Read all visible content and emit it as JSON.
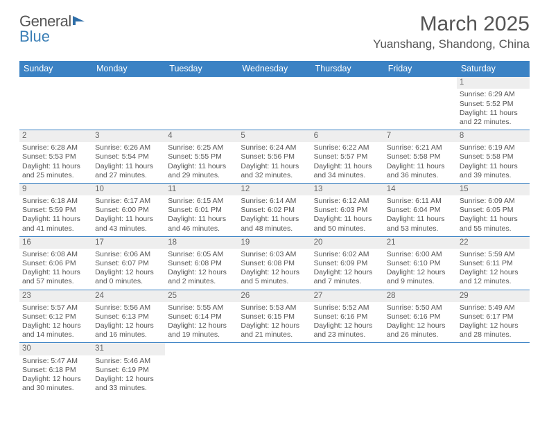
{
  "logo": {
    "text1": "General",
    "text2": "Blue"
  },
  "title": "March 2025",
  "location": "Yuanshang, Shandong, China",
  "colors": {
    "header_bg": "#3b82c4",
    "header_text": "#ffffff",
    "border": "#3b82c4",
    "daynum_bg": "#eeeeee",
    "text": "#555555"
  },
  "day_names": [
    "Sunday",
    "Monday",
    "Tuesday",
    "Wednesday",
    "Thursday",
    "Friday",
    "Saturday"
  ],
  "weeks": [
    [
      null,
      null,
      null,
      null,
      null,
      null,
      {
        "n": 1,
        "sr": "6:29 AM",
        "ss": "5:52 PM",
        "dl": "11 hours and 22 minutes."
      }
    ],
    [
      {
        "n": 2,
        "sr": "6:28 AM",
        "ss": "5:53 PM",
        "dl": "11 hours and 25 minutes."
      },
      {
        "n": 3,
        "sr": "6:26 AM",
        "ss": "5:54 PM",
        "dl": "11 hours and 27 minutes."
      },
      {
        "n": 4,
        "sr": "6:25 AM",
        "ss": "5:55 PM",
        "dl": "11 hours and 29 minutes."
      },
      {
        "n": 5,
        "sr": "6:24 AM",
        "ss": "5:56 PM",
        "dl": "11 hours and 32 minutes."
      },
      {
        "n": 6,
        "sr": "6:22 AM",
        "ss": "5:57 PM",
        "dl": "11 hours and 34 minutes."
      },
      {
        "n": 7,
        "sr": "6:21 AM",
        "ss": "5:58 PM",
        "dl": "11 hours and 36 minutes."
      },
      {
        "n": 8,
        "sr": "6:19 AM",
        "ss": "5:58 PM",
        "dl": "11 hours and 39 minutes."
      }
    ],
    [
      {
        "n": 9,
        "sr": "6:18 AM",
        "ss": "5:59 PM",
        "dl": "11 hours and 41 minutes."
      },
      {
        "n": 10,
        "sr": "6:17 AM",
        "ss": "6:00 PM",
        "dl": "11 hours and 43 minutes."
      },
      {
        "n": 11,
        "sr": "6:15 AM",
        "ss": "6:01 PM",
        "dl": "11 hours and 46 minutes."
      },
      {
        "n": 12,
        "sr": "6:14 AM",
        "ss": "6:02 PM",
        "dl": "11 hours and 48 minutes."
      },
      {
        "n": 13,
        "sr": "6:12 AM",
        "ss": "6:03 PM",
        "dl": "11 hours and 50 minutes."
      },
      {
        "n": 14,
        "sr": "6:11 AM",
        "ss": "6:04 PM",
        "dl": "11 hours and 53 minutes."
      },
      {
        "n": 15,
        "sr": "6:09 AM",
        "ss": "6:05 PM",
        "dl": "11 hours and 55 minutes."
      }
    ],
    [
      {
        "n": 16,
        "sr": "6:08 AM",
        "ss": "6:06 PM",
        "dl": "11 hours and 57 minutes."
      },
      {
        "n": 17,
        "sr": "6:06 AM",
        "ss": "6:07 PM",
        "dl": "12 hours and 0 minutes."
      },
      {
        "n": 18,
        "sr": "6:05 AM",
        "ss": "6:08 PM",
        "dl": "12 hours and 2 minutes."
      },
      {
        "n": 19,
        "sr": "6:03 AM",
        "ss": "6:08 PM",
        "dl": "12 hours and 5 minutes."
      },
      {
        "n": 20,
        "sr": "6:02 AM",
        "ss": "6:09 PM",
        "dl": "12 hours and 7 minutes."
      },
      {
        "n": 21,
        "sr": "6:00 AM",
        "ss": "6:10 PM",
        "dl": "12 hours and 9 minutes."
      },
      {
        "n": 22,
        "sr": "5:59 AM",
        "ss": "6:11 PM",
        "dl": "12 hours and 12 minutes."
      }
    ],
    [
      {
        "n": 23,
        "sr": "5:57 AM",
        "ss": "6:12 PM",
        "dl": "12 hours and 14 minutes."
      },
      {
        "n": 24,
        "sr": "5:56 AM",
        "ss": "6:13 PM",
        "dl": "12 hours and 16 minutes."
      },
      {
        "n": 25,
        "sr": "5:55 AM",
        "ss": "6:14 PM",
        "dl": "12 hours and 19 minutes."
      },
      {
        "n": 26,
        "sr": "5:53 AM",
        "ss": "6:15 PM",
        "dl": "12 hours and 21 minutes."
      },
      {
        "n": 27,
        "sr": "5:52 AM",
        "ss": "6:16 PM",
        "dl": "12 hours and 23 minutes."
      },
      {
        "n": 28,
        "sr": "5:50 AM",
        "ss": "6:16 PM",
        "dl": "12 hours and 26 minutes."
      },
      {
        "n": 29,
        "sr": "5:49 AM",
        "ss": "6:17 PM",
        "dl": "12 hours and 28 minutes."
      }
    ],
    [
      {
        "n": 30,
        "sr": "5:47 AM",
        "ss": "6:18 PM",
        "dl": "12 hours and 30 minutes."
      },
      {
        "n": 31,
        "sr": "5:46 AM",
        "ss": "6:19 PM",
        "dl": "12 hours and 33 minutes."
      },
      null,
      null,
      null,
      null,
      null
    ]
  ],
  "labels": {
    "sunrise": "Sunrise:",
    "sunset": "Sunset:",
    "daylight": "Daylight:"
  }
}
